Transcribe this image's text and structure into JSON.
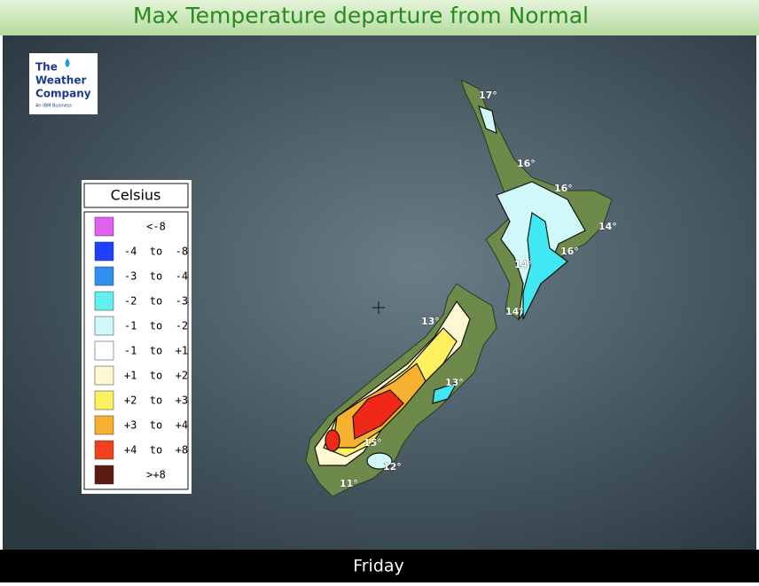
{
  "header": {
    "title": "Max Temperature departure from Normal"
  },
  "logo": {
    "name_lines": [
      "The",
      "Weather",
      "Company"
    ],
    "tagline": "An IBM Business"
  },
  "legend": {
    "title": "Celsius",
    "items": [
      {
        "label": "<-8",
        "color": "#e060f0"
      },
      {
        "label": "-4  to  -8",
        "color": "#2040ff"
      },
      {
        "label": "-3  to  -4",
        "color": "#3090f0"
      },
      {
        "label": "-2  to  -3",
        "color": "#60f0f0"
      },
      {
        "label": "-1  to  -2",
        "color": "#d0f8f8"
      },
      {
        "label": "-1  to  +1",
        "color": "#ffffff"
      },
      {
        "label": "+1  to  +2",
        "color": "#fff8d0"
      },
      {
        "label": "+2  to  +3",
        "color": "#fff060"
      },
      {
        "label": "+3  to  +4",
        "color": "#f8b030"
      },
      {
        "label": "+4  to  +8",
        "color": "#f04020"
      },
      {
        "label": ">+8",
        "color": "#5a1a10"
      }
    ]
  },
  "map_labels": [
    "17°",
    "16°",
    "16°",
    "14°",
    "14°",
    "16°",
    "14°",
    "13°",
    "13°",
    "15°",
    "12°",
    "11°"
  ],
  "footer": {
    "day": "Friday"
  }
}
